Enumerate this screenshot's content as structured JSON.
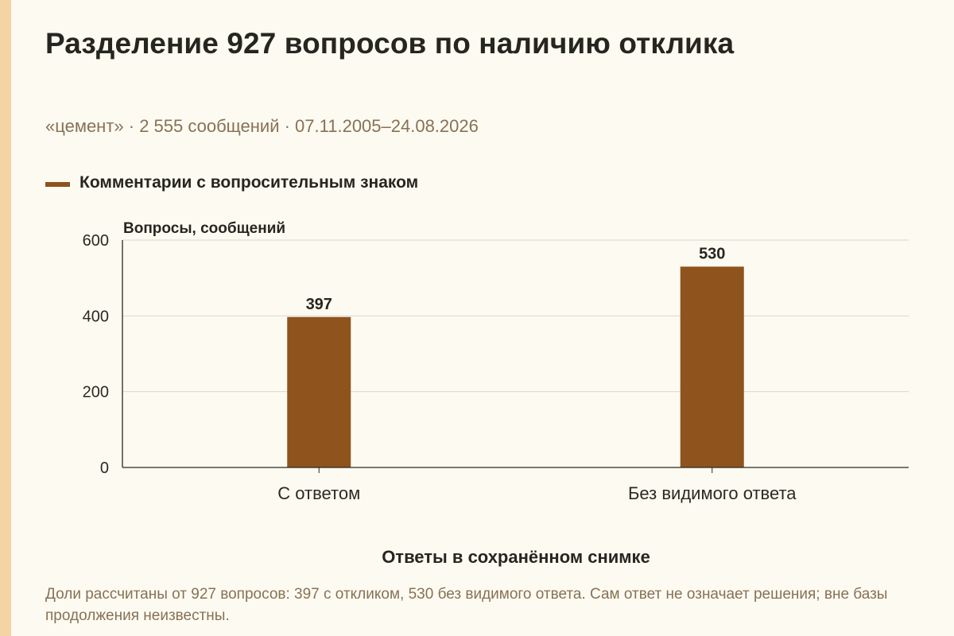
{
  "title": "Разделение 927 вопросов по наличию отклика",
  "subtitle": "«цемент» · 2 555 сообщений · 07.11.2005–24.08.2026",
  "footnote": "Доли рассчитаны от 927 вопросов: 397 с откликом, 530 без видимого ответа. Сам ответ не означает решения; вне базы продолжения неизвестны.",
  "colors": {
    "accent_strip": "#f4d3a4",
    "bar": "#8f531e",
    "grid": "#d9d7cf",
    "axis": "#2a2a22"
  },
  "chart_data": {
    "type": "bar",
    "title": "Разделение 927 вопросов по наличию отклика",
    "xlabel": "Ответы в сохранённом снимке",
    "ylabel": "Вопросы, сообщений",
    "ylim": [
      0,
      600
    ],
    "yticks": [
      0,
      200,
      400,
      600
    ],
    "grid": true,
    "legend_position": "top-left",
    "categories": [
      "С ответом",
      "Без видимого ответа"
    ],
    "series": [
      {
        "name": "Комментарии с вопросительным знаком",
        "values": [
          397,
          530
        ]
      }
    ]
  }
}
